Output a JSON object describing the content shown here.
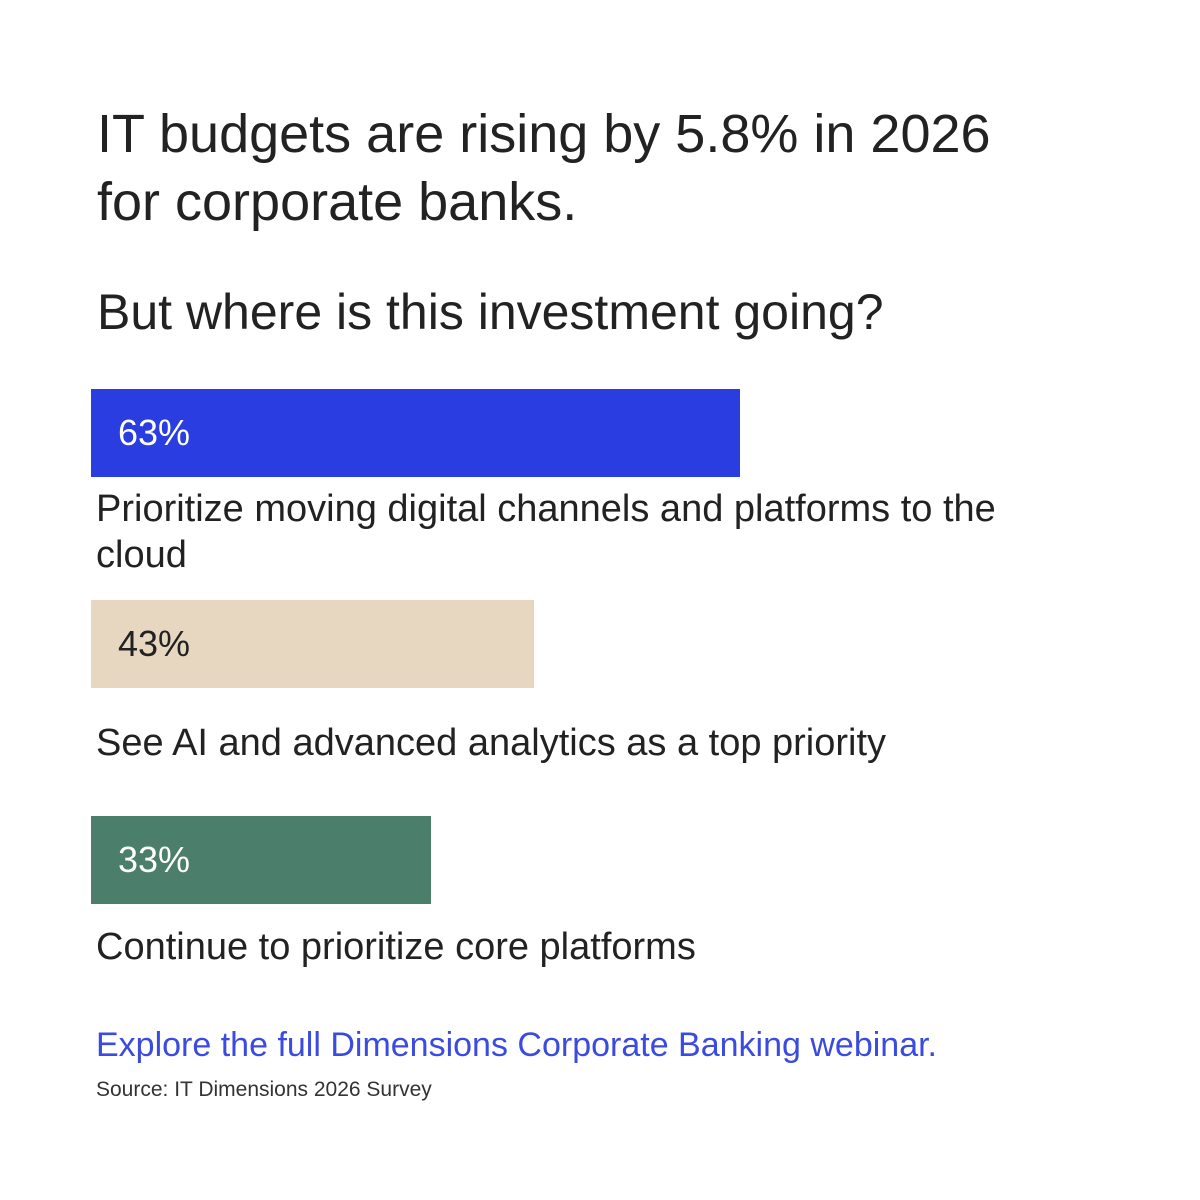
{
  "chart_data": {
    "type": "bar",
    "title": "IT budgets are rising by 5.8% in 2026 for corporate banks.",
    "subtitle": "But where is this investment going?",
    "categories": [
      "Prioritize moving digital channels and platforms to the cloud",
      "See AI and advanced analytics as a top priority",
      "Continue to prioritize core platforms"
    ],
    "values": [
      63,
      43,
      33
    ],
    "value_labels": [
      "63%",
      "43%",
      "33%"
    ],
    "colors": [
      "#2a3de0",
      "#e7d7c1",
      "#4b7f6b"
    ],
    "link": "Explore the full Dimensions Corporate Banking webinar.",
    "source": "Source: IT Dimensions 2026 Survey"
  }
}
